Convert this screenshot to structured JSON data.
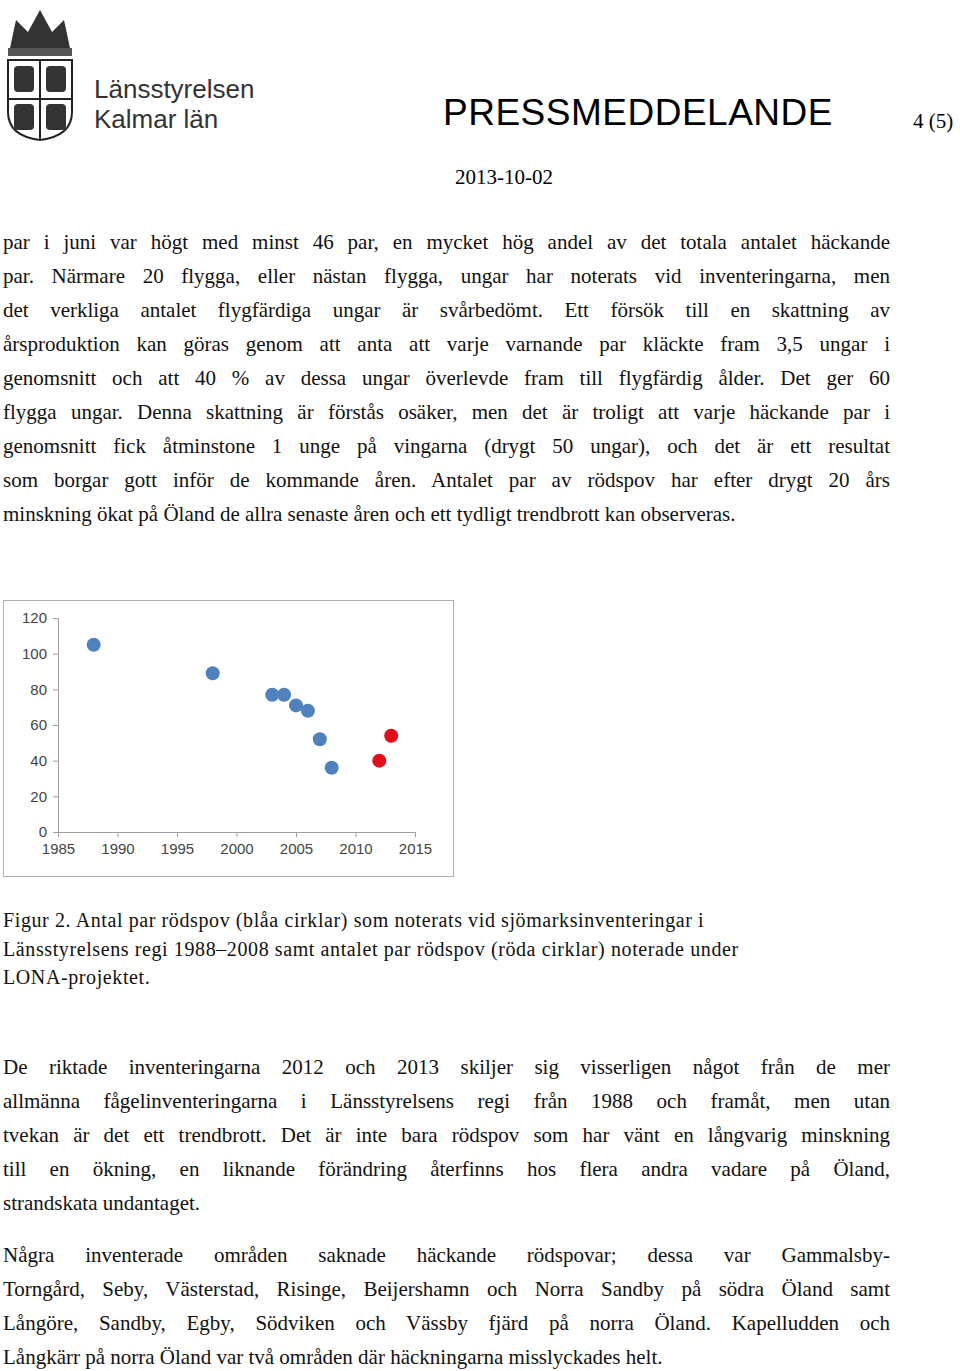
{
  "header": {
    "logo_line1": "Länsstyrelsen",
    "logo_line2": "Kalmar län",
    "title": "PRESSMEDDELANDE",
    "page": "4 (5)",
    "date": "2013-10-02"
  },
  "text_before": [
    [
      "par i juni var högt med minst 46 par, en mycket hög andel av det totala antalet häckande",
      "par. Närmare 20 flygga, eller nästan flygga, ungar har noterats vid inventeringarna, men",
      "det verkliga antalet flygfärdiga ungar är svårbedömt. Ett försök till en skattning av",
      "årsproduktion kan göras genom att anta att varje varnande par kläckte fram 3,5 ungar i",
      "genomsnitt och att 40 % av dessa ungar överlevde fram till flygfärdig ålder. Det ger 60",
      "flygga ungar. Denna skattning är förstås osäker, men det är troligt att varje häckande par i",
      "genomsnitt fick åtminstone 1 unge på vingarna (drygt 50 ungar), och det är ett resultat",
      "som borgar gott inför de kommande åren. Antalet par av rödspov har efter drygt 20 års",
      "minskning ökat på Öland de allra senaste åren och ett tydligt trendbrott kan observeras."
    ]
  ],
  "chart_data": {
    "type": "scatter",
    "marker": "circle",
    "xlim": [
      1985,
      2015
    ],
    "xticks": [
      1985,
      1990,
      1995,
      2000,
      2005,
      2010,
      2015
    ],
    "ylim": [
      0,
      120
    ],
    "yticks": [
      0,
      20,
      40,
      60,
      80,
      100,
      120
    ],
    "grid": false,
    "series": [
      {
        "color": "#4f81bd",
        "x": [
          1988,
          1998,
          2003,
          2004,
          2005,
          2006,
          2007,
          2008
        ],
        "values": [
          105,
          89,
          77,
          77,
          71,
          68,
          52,
          36
        ]
      },
      {
        "color": "#e0101a",
        "x": [
          2012,
          2013
        ],
        "values": [
          40,
          54
        ]
      }
    ]
  },
  "caption": [
    "Figur 2. Antal par rödspov (blåa cirklar) som noterats vid sjömarksinventeringar i",
    "Länsstyrelsens regi 1988–2008 samt antalet par rödspov (röda cirklar) noterade under",
    "LONA-projektet."
  ],
  "text_after": [
    [
      "De riktade inventeringarna 2012 och 2013 skiljer sig visserligen något från de mer",
      "allmänna fågelinventeringarna i Länsstyrelsens regi från 1988 och framåt, men utan",
      "tvekan är det ett trendbrott. Det är inte bara rödspov som har vänt en långvarig minskning",
      "till en ökning, en liknande förändring återfinns hos flera andra vadare på Öland,",
      "strandskata undantaget."
    ],
    [
      "Några inventerade områden saknade häckande rödspovar; dessa var Gammalsby-",
      "Torngård, Seby, Västerstad, Risinge, Beijershamn och Norra Sandby på södra Öland samt",
      "Långöre, Sandby, Egby, Södviken och Vässby fjärd på norra Öland. Kapelludden och",
      "Långkärr på norra Öland var två områden där häckningarna misslyckades helt."
    ]
  ]
}
